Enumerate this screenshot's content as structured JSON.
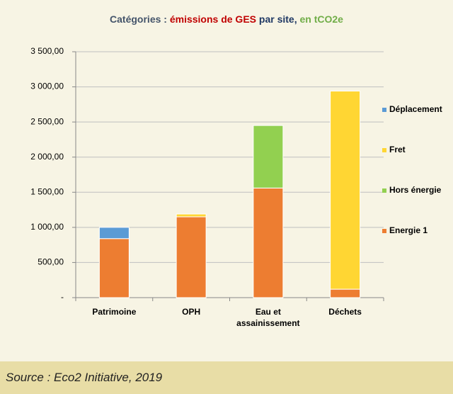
{
  "chart_data": {
    "type": "stacked_bar",
    "title_parts": [
      {
        "text": "Catégories : ",
        "color": "#44546A"
      },
      {
        "text": "émissions de GES",
        "color": "#C00000"
      },
      {
        "text": " par site, ",
        "color": "#1F3864"
      },
      {
        "text": "en tCO2e",
        "color": "#70AD47"
      }
    ],
    "categories": [
      "Patrimoine",
      "OPH",
      "Eau et assainissement",
      "Déchets"
    ],
    "series": [
      {
        "name": "Energie 1",
        "color": "#ED7D31",
        "values": [
          840,
          1150,
          1560,
          120
        ]
      },
      {
        "name": "Hors énergie",
        "color": "#92D050",
        "values": [
          0,
          0,
          890,
          0
        ]
      },
      {
        "name": "Fret",
        "color": "#FFD633",
        "values": [
          0,
          40,
          0,
          2820
        ]
      },
      {
        "name": "Déplacement",
        "color": "#5B9BD5",
        "values": [
          160,
          0,
          0,
          0
        ]
      }
    ],
    "ylim": [
      0,
      3500
    ],
    "yticks": [
      {
        "value": 0,
        "label": "-"
      },
      {
        "value": 500,
        "label": "500,00"
      },
      {
        "value": 1000,
        "label": "1 000,00"
      },
      {
        "value": 1500,
        "label": "1 500,00"
      },
      {
        "value": 2000,
        "label": "2 000,00"
      },
      {
        "value": 2500,
        "label": "2 500,00"
      },
      {
        "value": 3000,
        "label": "3 000,00"
      },
      {
        "value": 3500,
        "label": "3 500,00"
      }
    ],
    "grid": true,
    "legend": "right"
  },
  "source": "Source : Eco2 Initiative, 2019"
}
